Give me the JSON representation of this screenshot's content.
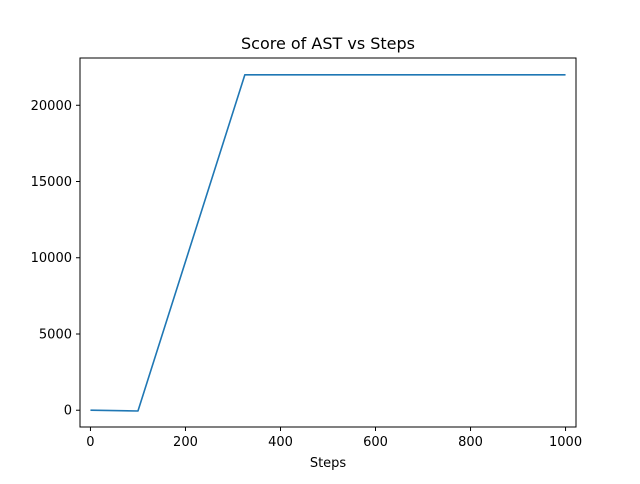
{
  "chart_data": {
    "type": "line",
    "title": "Score of AST vs Steps",
    "xlabel": "Steps",
    "ylabel": "",
    "xlim": [
      -22,
      1022
    ],
    "ylim": [
      -1100,
      23100
    ],
    "xticks": [
      0,
      200,
      400,
      600,
      800,
      1000
    ],
    "yticks": [
      0,
      5000,
      10000,
      15000,
      20000
    ],
    "xtick_labels": [
      "0",
      "200",
      "400",
      "600",
      "800",
      "1000"
    ],
    "ytick_labels": [
      "0",
      "5000",
      "10000",
      "15000",
      "20000"
    ],
    "grid": false,
    "colors": {
      "line": "#1f77b4",
      "axes": "#000000"
    },
    "series": [
      {
        "x": [
          0,
          100,
          325,
          1000
        ],
        "y": [
          0,
          -50,
          22000,
          22000
        ]
      }
    ]
  }
}
